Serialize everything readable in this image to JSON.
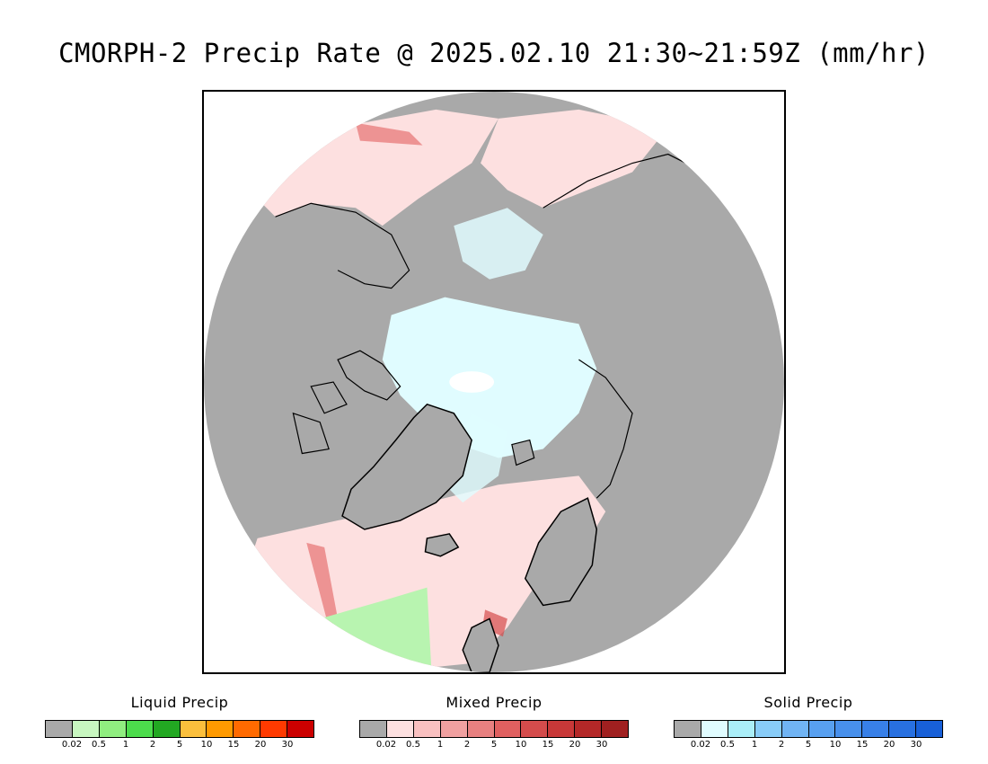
{
  "title": "CMORPH-2 Precip Rate @ 2025.02.10 21:30~21:59Z (mm/hr)",
  "map": {
    "projection": "north-polar-stereographic",
    "background_color": "#a9a9a9",
    "coastline_color": "#000000"
  },
  "legends": [
    {
      "id": "liquid",
      "title": "Liquid Precip",
      "colors": [
        "#a9a9a9",
        "#c8f7c0",
        "#90ee80",
        "#4cdc4c",
        "#22a822",
        "#fbbf3c",
        "#ff9a00",
        "#ff6a00",
        "#ff3a00",
        "#cc0000"
      ],
      "tick_labels": [
        "0.02",
        "0.5",
        "1",
        "2",
        "5",
        "10",
        "15",
        "20",
        "30"
      ]
    },
    {
      "id": "mixed",
      "title": "Mixed Precip",
      "colors": [
        "#a9a9a9",
        "#fde0e0",
        "#f9c0c0",
        "#f0a0a0",
        "#e88080",
        "#e06060",
        "#d44c4c",
        "#c83838",
        "#b42828",
        "#a02020"
      ],
      "tick_labels": [
        "0.02",
        "0.5",
        "1",
        "2",
        "5",
        "10",
        "15",
        "20",
        "30"
      ]
    },
    {
      "id": "solid",
      "title": "Solid Precip",
      "colors": [
        "#a9a9a9",
        "#e0fcff",
        "#aaeef8",
        "#88ccf8",
        "#70b4f4",
        "#58a0f0",
        "#4890ec",
        "#3880e8",
        "#2870e0",
        "#1860d8"
      ],
      "tick_labels": [
        "0.02",
        "0.5",
        "1",
        "2",
        "5",
        "10",
        "15",
        "20",
        "30"
      ]
    }
  ]
}
